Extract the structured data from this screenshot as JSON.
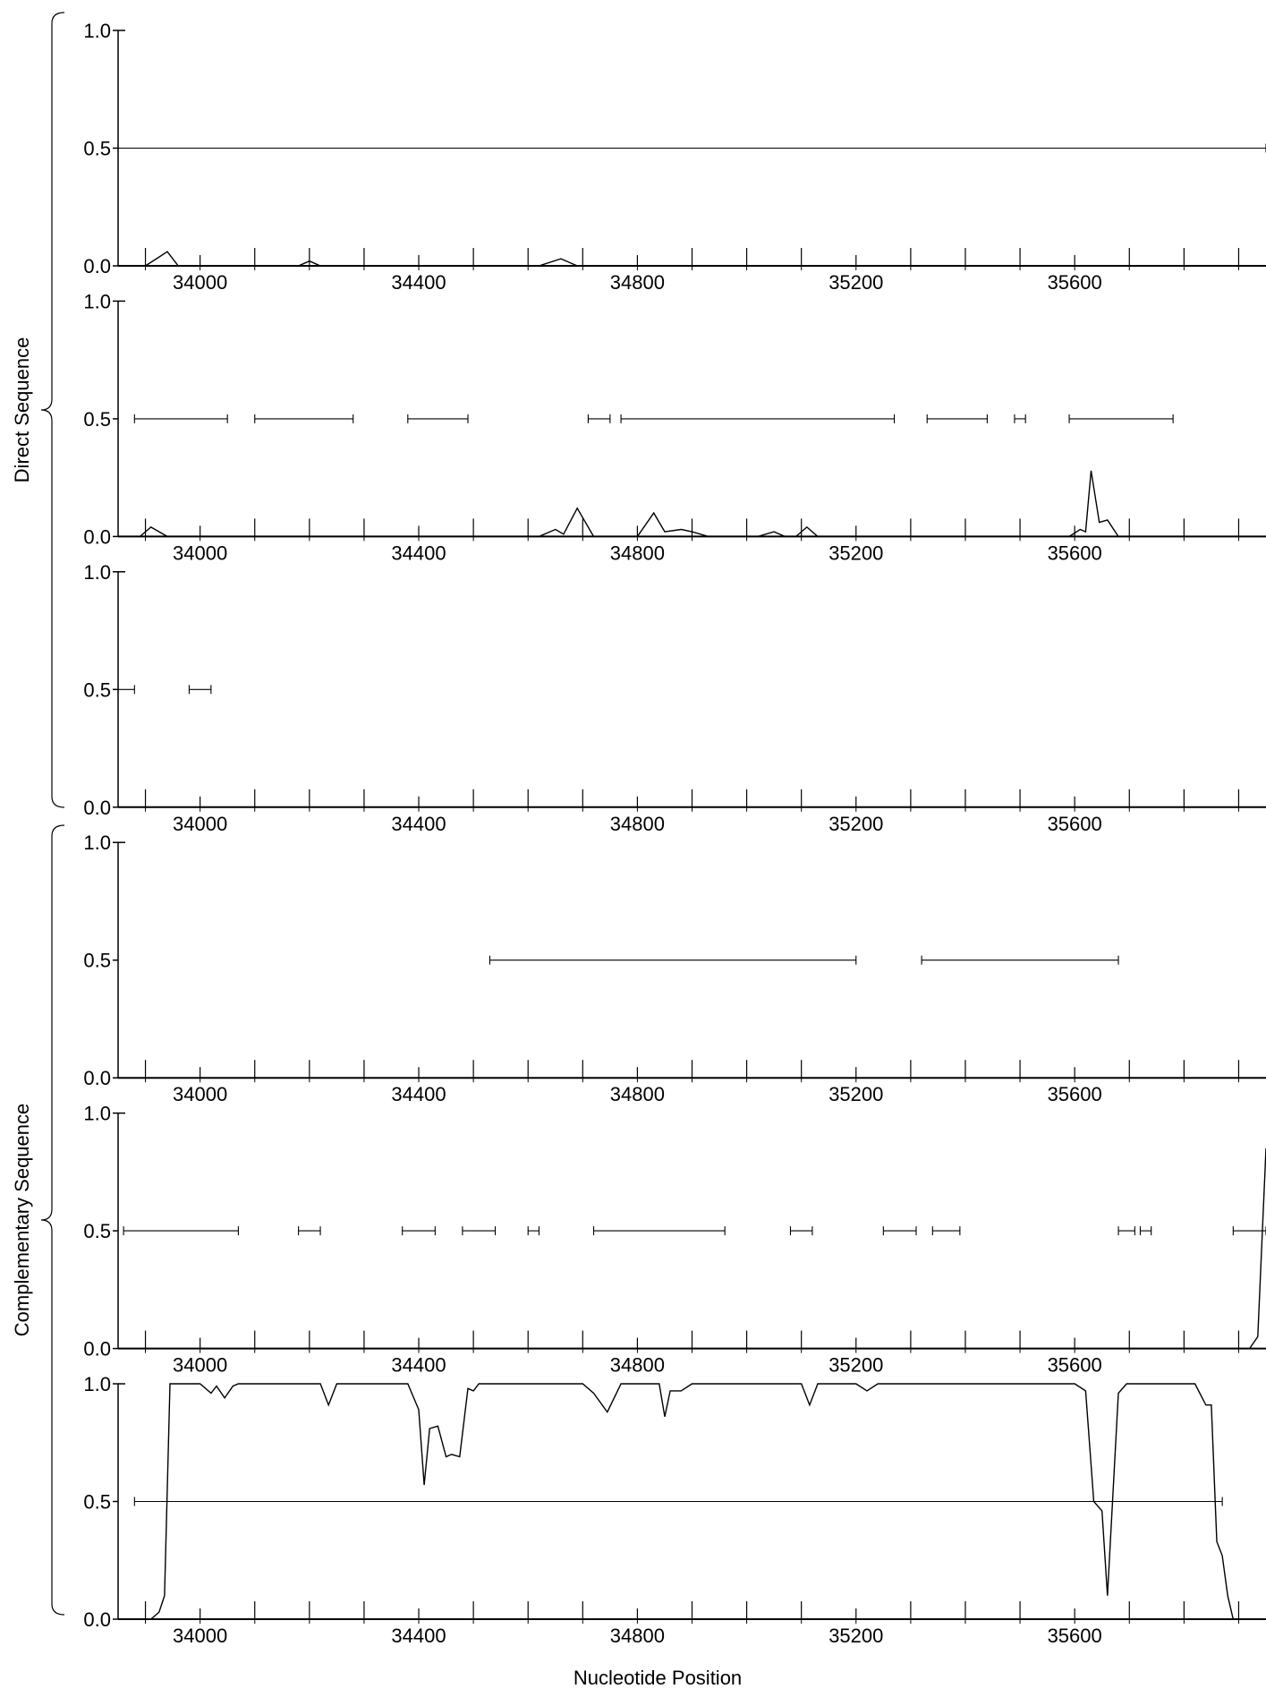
{
  "figure": {
    "xlabel": "Nucleotide Position",
    "groups": [
      "Direct Sequence",
      "Complementary Sequence"
    ]
  },
  "chart_data": [
    {
      "type": "line",
      "group": "Direct Sequence",
      "xlim": [
        33850,
        35950
      ],
      "ylim": [
        0,
        1
      ],
      "x_ticks": [
        34000,
        34400,
        34800,
        35200,
        35600
      ],
      "y_ticks": [
        "0.0",
        "0.5",
        "1.0"
      ],
      "probability_curve": [
        [
          33850,
          0
        ],
        [
          33900,
          0
        ],
        [
          33920,
          0.03
        ],
        [
          33940,
          0.06
        ],
        [
          33960,
          0
        ],
        [
          34180,
          0
        ],
        [
          34200,
          0.02
        ],
        [
          34220,
          0
        ],
        [
          34620,
          0
        ],
        [
          34660,
          0.03
        ],
        [
          34690,
          0
        ],
        [
          35950,
          0
        ]
      ],
      "segments": [
        [
          33850,
          35950
        ]
      ]
    },
    {
      "type": "line",
      "group": "Direct Sequence",
      "xlim": [
        33850,
        35950
      ],
      "ylim": [
        0,
        1
      ],
      "x_ticks": [
        34000,
        34400,
        34800,
        35200,
        35600
      ],
      "y_ticks": [
        "0.0",
        "0.5",
        "1.0"
      ],
      "probability_curve": [
        [
          33850,
          0
        ],
        [
          33890,
          0
        ],
        [
          33910,
          0.04
        ],
        [
          33940,
          0
        ],
        [
          34620,
          0
        ],
        [
          34650,
          0.03
        ],
        [
          34665,
          0.01
        ],
        [
          34690,
          0.12
        ],
        [
          34720,
          0
        ],
        [
          34800,
          0
        ],
        [
          34830,
          0.1
        ],
        [
          34850,
          0.02
        ],
        [
          34880,
          0.03
        ],
        [
          34900,
          0.02
        ],
        [
          34930,
          0
        ],
        [
          35020,
          0
        ],
        [
          35050,
          0.02
        ],
        [
          35070,
          0
        ],
        [
          35090,
          0
        ],
        [
          35110,
          0.04
        ],
        [
          35130,
          0
        ],
        [
          35590,
          0
        ],
        [
          35610,
          0.03
        ],
        [
          35620,
          0.02
        ],
        [
          35630,
          0.28
        ],
        [
          35645,
          0.06
        ],
        [
          35660,
          0.07
        ],
        [
          35680,
          0
        ],
        [
          35950,
          0
        ]
      ],
      "segments": [
        [
          33880,
          34050
        ],
        [
          34100,
          34280
        ],
        [
          34380,
          34490
        ],
        [
          34710,
          34750
        ],
        [
          34770,
          35270
        ],
        [
          35330,
          35440
        ],
        [
          35490,
          35510
        ],
        [
          35590,
          35780
        ]
      ]
    },
    {
      "type": "line",
      "group": "Direct Sequence",
      "xlim": [
        33850,
        35950
      ],
      "ylim": [
        0,
        1
      ],
      "x_ticks": [
        34000,
        34400,
        34800,
        35200,
        35600
      ],
      "y_ticks": [
        "0.0",
        "0.5",
        "1.0"
      ],
      "probability_curve": [
        [
          33850,
          0
        ],
        [
          35950,
          0
        ]
      ],
      "segments": [
        [
          33850,
          33880
        ],
        [
          33980,
          34020
        ]
      ]
    },
    {
      "type": "line",
      "group": "Complementary Sequence",
      "xlim": [
        33850,
        35950
      ],
      "ylim": [
        0,
        1
      ],
      "x_ticks": [
        34000,
        34400,
        34800,
        35200,
        35600
      ],
      "y_ticks": [
        "0.0",
        "0.5",
        "1.0"
      ],
      "probability_curve": [
        [
          33850,
          0
        ],
        [
          35950,
          0
        ]
      ],
      "segments": [
        [
          34530,
          35200
        ],
        [
          35320,
          35680
        ]
      ]
    },
    {
      "type": "line",
      "group": "Complementary Sequence",
      "xlim": [
        33850,
        35950
      ],
      "ylim": [
        0,
        1
      ],
      "x_ticks": [
        34000,
        34400,
        34800,
        35200,
        35600
      ],
      "y_ticks": [
        "0.0",
        "0.5",
        "1.0"
      ],
      "probability_curve": [
        [
          33850,
          0
        ],
        [
          35920,
          0
        ],
        [
          35935,
          0.05
        ],
        [
          35950,
          0.85
        ]
      ],
      "segments": [
        [
          33860,
          34070
        ],
        [
          34180,
          34220
        ],
        [
          34370,
          34430
        ],
        [
          34480,
          34540
        ],
        [
          34600,
          34620
        ],
        [
          34720,
          34960
        ],
        [
          35080,
          35120
        ],
        [
          35250,
          35310
        ],
        [
          35340,
          35390
        ],
        [
          35680,
          35710
        ],
        [
          35720,
          35740
        ],
        [
          35890,
          35950
        ]
      ]
    },
    {
      "type": "line",
      "group": "Complementary Sequence",
      "xlim": [
        33850,
        35950
      ],
      "ylim": [
        0,
        1
      ],
      "x_ticks": [
        34000,
        34400,
        34800,
        35200,
        35600
      ],
      "y_ticks": [
        "0.0",
        "0.5",
        "1.0"
      ],
      "probability_curve": [
        [
          33850,
          0
        ],
        [
          33910,
          0
        ],
        [
          33925,
          0.03
        ],
        [
          33935,
          0.1
        ],
        [
          33945,
          1
        ],
        [
          34000,
          1
        ],
        [
          34020,
          0.96
        ],
        [
          34030,
          0.99
        ],
        [
          34045,
          0.94
        ],
        [
          34060,
          0.99
        ],
        [
          34070,
          1
        ],
        [
          34220,
          1
        ],
        [
          34235,
          0.91
        ],
        [
          34250,
          1
        ],
        [
          34380,
          1
        ],
        [
          34400,
          0.89
        ],
        [
          34410,
          0.57
        ],
        [
          34420,
          0.81
        ],
        [
          34435,
          0.82
        ],
        [
          34450,
          0.69
        ],
        [
          34460,
          0.7
        ],
        [
          34475,
          0.69
        ],
        [
          34490,
          0.98
        ],
        [
          34500,
          0.97
        ],
        [
          34510,
          1
        ],
        [
          34700,
          1
        ],
        [
          34720,
          0.96
        ],
        [
          34745,
          0.88
        ],
        [
          34770,
          1
        ],
        [
          34840,
          1
        ],
        [
          34850,
          0.86
        ],
        [
          34860,
          0.97
        ],
        [
          34880,
          0.97
        ],
        [
          34900,
          1
        ],
        [
          35100,
          1
        ],
        [
          35115,
          0.91
        ],
        [
          35130,
          1
        ],
        [
          35200,
          1
        ],
        [
          35220,
          0.97
        ],
        [
          35240,
          1
        ],
        [
          35600,
          1
        ],
        [
          35620,
          0.97
        ],
        [
          35635,
          0.5
        ],
        [
          35650,
          0.46
        ],
        [
          35660,
          0.1
        ],
        [
          35680,
          0.96
        ],
        [
          35695,
          1
        ],
        [
          35820,
          1
        ],
        [
          35840,
          0.91
        ],
        [
          35850,
          0.91
        ],
        [
          35860,
          0.33
        ],
        [
          35870,
          0.27
        ],
        [
          35880,
          0.1
        ],
        [
          35890,
          0
        ],
        [
          35950,
          0
        ]
      ],
      "segments": [
        [
          33880,
          35870
        ]
      ]
    }
  ]
}
